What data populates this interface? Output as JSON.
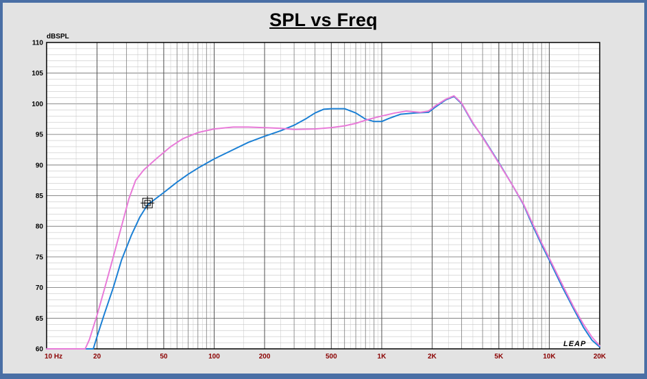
{
  "chart_data": {
    "type": "line",
    "title": "SPL vs Freq",
    "ylabel": "dBSPL",
    "xlabel": "",
    "xscale": "log",
    "xlim": [
      10,
      20000
    ],
    "ylim": [
      60,
      110
    ],
    "yticks": [
      110,
      105,
      100,
      95,
      90,
      85,
      80,
      75,
      70,
      65,
      60
    ],
    "xticks": [
      {
        "value": 10,
        "label": "10  Hz"
      },
      {
        "value": 20,
        "label": "20"
      },
      {
        "value": 50,
        "label": "50"
      },
      {
        "value": 100,
        "label": "100"
      },
      {
        "value": 200,
        "label": "200"
      },
      {
        "value": 500,
        "label": "500"
      },
      {
        "value": 1000,
        "label": "1K"
      },
      {
        "value": 2000,
        "label": "2K"
      },
      {
        "value": 5000,
        "label": "5K"
      },
      {
        "value": 10000,
        "label": "10K"
      },
      {
        "value": 20000,
        "label": "20K"
      }
    ],
    "grid": true,
    "watermark": "LEAP",
    "marker": {
      "x": 40,
      "y": 83.8
    },
    "series": [
      {
        "color": "#1a7fd4",
        "points": [
          [
            10,
            60
          ],
          [
            19,
            60
          ],
          [
            20,
            62
          ],
          [
            22,
            65.5
          ],
          [
            25,
            70
          ],
          [
            28,
            74.5
          ],
          [
            32,
            78.5
          ],
          [
            36,
            81.5
          ],
          [
            40,
            83.5
          ],
          [
            50,
            85.5
          ],
          [
            60,
            87.2
          ],
          [
            70,
            88.5
          ],
          [
            80,
            89.5
          ],
          [
            100,
            91
          ],
          [
            130,
            92.5
          ],
          [
            160,
            93.7
          ],
          [
            200,
            94.7
          ],
          [
            250,
            95.6
          ],
          [
            300,
            96.5
          ],
          [
            350,
            97.5
          ],
          [
            400,
            98.5
          ],
          [
            450,
            99.1
          ],
          [
            500,
            99.2
          ],
          [
            600,
            99.2
          ],
          [
            700,
            98.5
          ],
          [
            800,
            97.5
          ],
          [
            900,
            97.1
          ],
          [
            1000,
            97.1
          ],
          [
            1100,
            97.6
          ],
          [
            1300,
            98.3
          ],
          [
            1600,
            98.5
          ],
          [
            1900,
            98.6
          ],
          [
            2100,
            99.5
          ],
          [
            2400,
            100.6
          ],
          [
            2700,
            101.2
          ],
          [
            3000,
            100.0
          ],
          [
            3500,
            96.8
          ],
          [
            4000,
            94.6
          ],
          [
            5000,
            90.4
          ],
          [
            6000,
            86.8
          ],
          [
            7000,
            83.6
          ],
          [
            8000,
            80.0
          ],
          [
            9000,
            77.0
          ],
          [
            10000,
            74.5
          ],
          [
            12000,
            70.0
          ],
          [
            14000,
            66.5
          ],
          [
            16000,
            63.5
          ],
          [
            18000,
            61.4
          ],
          [
            20000,
            60.3
          ]
        ]
      },
      {
        "color": "#e87ad8",
        "points": [
          [
            10,
            60
          ],
          [
            17,
            60
          ],
          [
            18,
            61.5
          ],
          [
            20,
            65.5
          ],
          [
            22,
            69.5
          ],
          [
            25,
            75
          ],
          [
            28,
            80
          ],
          [
            31,
            84.5
          ],
          [
            34,
            87.5
          ],
          [
            38,
            89.2
          ],
          [
            45,
            91
          ],
          [
            55,
            93
          ],
          [
            65,
            94.3
          ],
          [
            80,
            95.3
          ],
          [
            100,
            95.9
          ],
          [
            130,
            96.2
          ],
          [
            160,
            96.2
          ],
          [
            200,
            96.1
          ],
          [
            250,
            96.0
          ],
          [
            300,
            95.8
          ],
          [
            400,
            95.9
          ],
          [
            500,
            96.1
          ],
          [
            600,
            96.4
          ],
          [
            700,
            96.8
          ],
          [
            800,
            97.3
          ],
          [
            900,
            97.7
          ],
          [
            1000,
            98.0
          ],
          [
            1200,
            98.5
          ],
          [
            1400,
            98.8
          ],
          [
            1700,
            98.6
          ],
          [
            1900,
            98.8
          ],
          [
            2100,
            99.7
          ],
          [
            2400,
            100.7
          ],
          [
            2700,
            101.3
          ],
          [
            3000,
            100.1
          ],
          [
            3500,
            96.9
          ],
          [
            4000,
            94.5
          ],
          [
            5000,
            90.3
          ],
          [
            6000,
            86.8
          ],
          [
            7000,
            83.7
          ],
          [
            8000,
            80.3
          ],
          [
            9000,
            77.3
          ],
          [
            10000,
            74.8
          ],
          [
            12000,
            70.4
          ],
          [
            14000,
            66.8
          ],
          [
            16000,
            64
          ],
          [
            18000,
            61.9
          ],
          [
            20000,
            60.5
          ]
        ]
      }
    ]
  }
}
